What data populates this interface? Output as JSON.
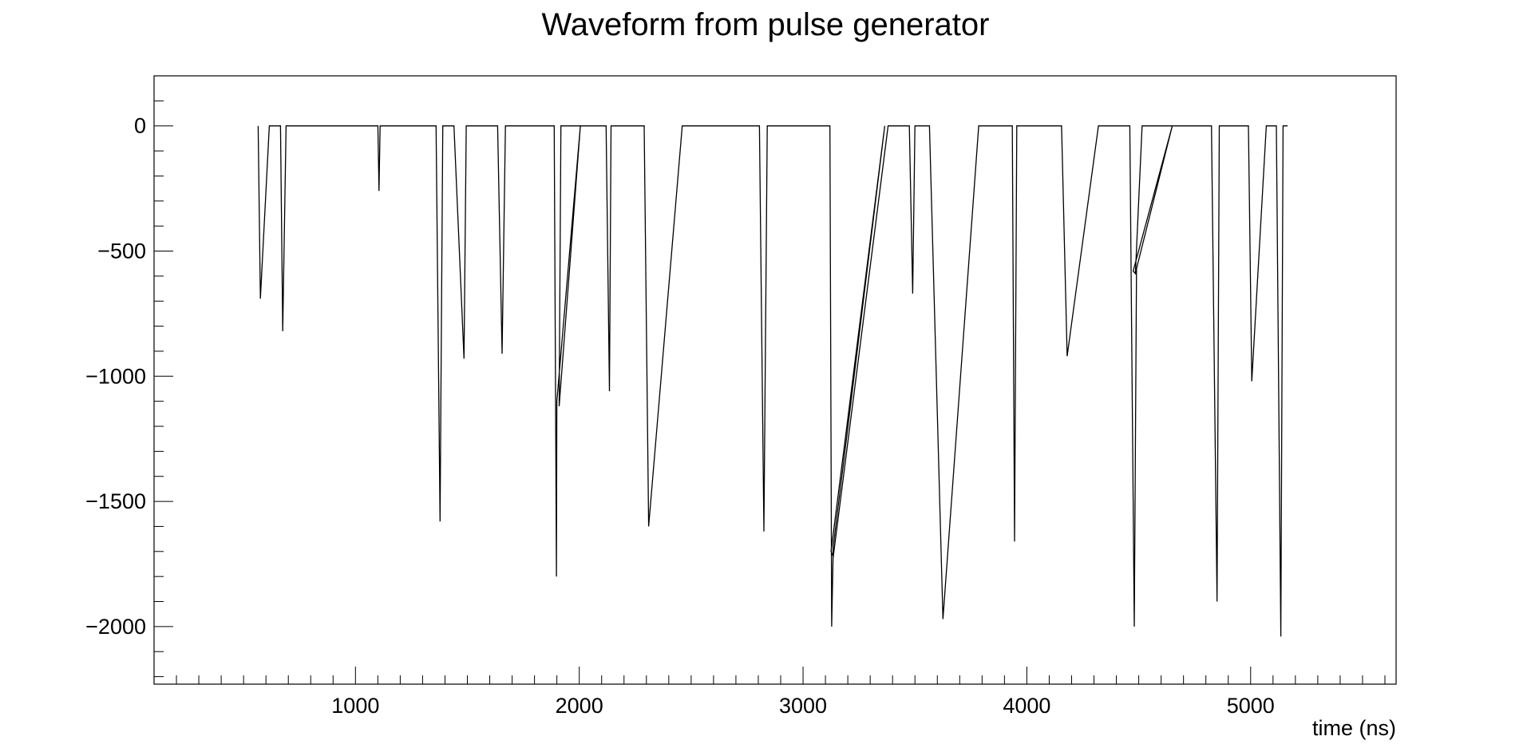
{
  "chart_data": {
    "type": "line",
    "title": "Waveform from pulse generator",
    "xlabel": "time (ns)",
    "ylabel": "",
    "xlim": [
      100,
      5650
    ],
    "ylim": [
      -2230,
      200
    ],
    "x_ticks": [
      1000,
      2000,
      3000,
      4000,
      5000
    ],
    "x_tick_labels": [
      "1000",
      "2000",
      "3000",
      "4000",
      "5000"
    ],
    "y_ticks": [
      0,
      -500,
      -1000,
      -1500,
      -2000
    ],
    "y_tick_labels": [
      "0",
      "−500",
      "−1000",
      "−1500",
      "−2000"
    ],
    "grid": false,
    "legend": "none",
    "line_color": "#000000",
    "series": [
      {
        "x": [
          565,
          575,
          615,
          665,
          675,
          690,
          1100,
          1105,
          1110,
          1360,
          1378,
          1390,
          1440,
          1485,
          1495,
          1530,
          1635,
          1655,
          1670,
          1805,
          1888,
          1898,
          1900,
          2005,
          1910,
          1918,
          1990,
          2120,
          2135,
          2142,
          2290,
          2310,
          2460,
          2805,
          2825,
          2840,
          3120,
          3128,
          3135,
          3365,
          3125,
          3135,
          3380,
          3475,
          3490,
          3500,
          3565,
          3625,
          3785,
          3935,
          3945,
          3955,
          4155,
          4180,
          4320,
          4460,
          4480,
          4490,
          4650,
          4475,
          4485,
          4515,
          4640,
          4825,
          4850,
          4860,
          4990,
          5005,
          5070,
          5115,
          5135,
          5145,
          5165
        ],
        "y": [
          0,
          -690,
          0,
          0,
          -820,
          0,
          0,
          -260,
          0,
          0,
          -1580,
          0,
          0,
          -930,
          0,
          0,
          0,
          -910,
          0,
          0,
          0,
          -1800,
          -1100,
          0,
          -1120,
          0,
          0,
          0,
          -1060,
          0,
          0,
          -1600,
          0,
          0,
          -1620,
          0,
          0,
          -2000,
          -1680,
          0,
          -1700,
          -1720,
          0,
          0,
          -670,
          0,
          0,
          -1970,
          0,
          0,
          -1660,
          0,
          0,
          -920,
          0,
          0,
          -2000,
          -570,
          0,
          -580,
          -590,
          0,
          0,
          0,
          -1900,
          0,
          0,
          -1020,
          0,
          0,
          -2040,
          0,
          0
        ]
      }
    ]
  }
}
